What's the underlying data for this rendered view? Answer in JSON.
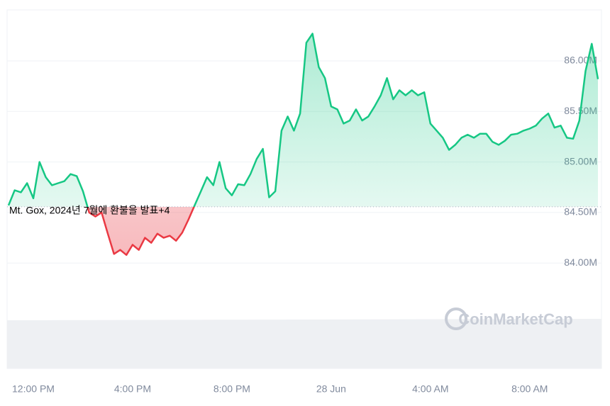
{
  "chart_data": {
    "type": "line",
    "annotation": "Mt. Gox, 2024년 7월에 환불을 발표+4",
    "watermark": "CoinMarketCap",
    "baseline": 84.556,
    "up_color": "#16c784",
    "down_color": "#ea3943",
    "grid": true,
    "xlim": [
      -1,
      22.75
    ],
    "xticks": [
      {
        "value": 0,
        "label": "12:00 PM"
      },
      {
        "value": 4,
        "label": "4:00 PM"
      },
      {
        "value": 8,
        "label": "8:00 PM"
      },
      {
        "value": 12,
        "label": "28 Jun"
      },
      {
        "value": 16,
        "label": "4:00 AM"
      },
      {
        "value": 20,
        "label": "8:00 AM"
      }
    ],
    "ylim": [
      83.5,
      86.5
    ],
    "yticks": [
      {
        "value": 84,
        "label": "84.00M"
      },
      {
        "value": 84.5,
        "label": "84.50M"
      },
      {
        "value": 85,
        "label": "85.00M"
      },
      {
        "value": 85.5,
        "label": "85.50M"
      },
      {
        "value": 86,
        "label": "86.00M"
      }
    ],
    "x": [
      -1,
      -0.75,
      -0.5,
      -0.25,
      0,
      0.25,
      0.5,
      0.75,
      1,
      1.25,
      1.5,
      1.75,
      2,
      2.25,
      2.5,
      2.75,
      3,
      3.25,
      3.5,
      3.75,
      4,
      4.25,
      4.5,
      4.75,
      5,
      5.25,
      5.5,
      5.75,
      6,
      6.25,
      6.5,
      6.75,
      7,
      7.25,
      7.5,
      7.75,
      8,
      8.25,
      8.5,
      8.75,
      9,
      9.25,
      9.5,
      9.75,
      10,
      10.25,
      10.5,
      10.75,
      11,
      11.25,
      11.5,
      11.75,
      12,
      12.25,
      12.5,
      12.75,
      13,
      13.25,
      13.5,
      13.75,
      14,
      14.25,
      14.5,
      14.75,
      15,
      15.25,
      15.5,
      15.75,
      16,
      16.25,
      16.5,
      16.75,
      17,
      17.25,
      17.5,
      17.75,
      18,
      18.25,
      18.5,
      18.75,
      19,
      19.25,
      19.5,
      19.75,
      20,
      20.25,
      20.5,
      20.75,
      21,
      21.25,
      21.5,
      21.75,
      22,
      22.25,
      22.5,
      22.75
    ],
    "values": [
      84.57,
      84.72,
      84.7,
      84.79,
      84.64,
      85.0,
      84.85,
      84.77,
      84.79,
      84.81,
      84.88,
      84.86,
      84.71,
      84.5,
      84.46,
      84.5,
      84.29,
      84.09,
      84.13,
      84.08,
      84.18,
      84.13,
      84.25,
      84.2,
      84.29,
      84.25,
      84.27,
      84.22,
      84.3,
      84.43,
      84.57,
      84.71,
      84.85,
      84.77,
      85.0,
      84.74,
      84.67,
      84.78,
      84.77,
      84.88,
      85.03,
      85.13,
      84.65,
      84.71,
      85.31,
      85.45,
      85.31,
      85.48,
      86.18,
      86.27,
      85.94,
      85.83,
      85.55,
      85.52,
      85.38,
      85.41,
      85.52,
      85.41,
      85.45,
      85.55,
      85.66,
      85.83,
      85.62,
      85.71,
      85.66,
      85.71,
      85.66,
      85.69,
      85.38,
      85.31,
      85.24,
      85.12,
      85.17,
      85.24,
      85.27,
      85.24,
      85.28,
      85.28,
      85.2,
      85.17,
      85.21,
      85.27,
      85.28,
      85.31,
      85.33,
      85.36,
      85.43,
      85.48,
      85.34,
      85.36,
      85.24,
      85.23,
      85.41,
      85.9,
      86.17,
      85.82
    ]
  }
}
